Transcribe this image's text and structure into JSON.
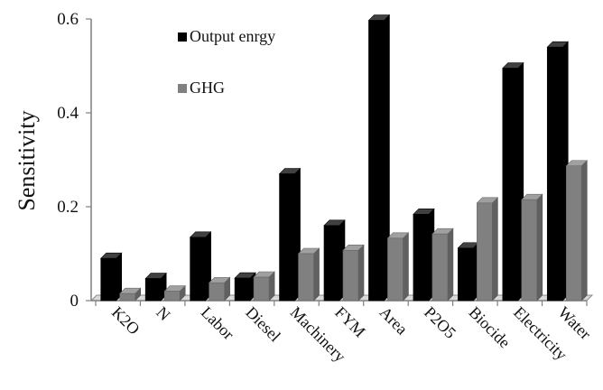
{
  "chart_data": {
    "type": "bar",
    "style": "3d-clustered",
    "title": "",
    "xlabel": "",
    "ylabel": "Sensitivity",
    "ylim": [
      0,
      0.6
    ],
    "yticks": [
      "0",
      "0.2",
      "0.4",
      "0.6"
    ],
    "ytick_values": [
      0,
      0.2,
      0.4,
      0.6
    ],
    "grid": false,
    "legend_position": "top-left",
    "categories": [
      "K2O",
      "N",
      "Labor",
      "Diesel",
      "Machinery",
      "FYM",
      "Area",
      "P2O5",
      "Biocide",
      "Electricity",
      "Water"
    ],
    "series": [
      {
        "name": "Output enrgy",
        "color": "#000000",
        "values": [
          0.09,
          0.047,
          0.135,
          0.048,
          0.27,
          0.16,
          0.597,
          0.184,
          0.112,
          0.495,
          0.54
        ]
      },
      {
        "name": "GHG",
        "color": "#808080",
        "values": [
          0.015,
          0.02,
          0.038,
          0.05,
          0.1,
          0.107,
          0.133,
          0.142,
          0.208,
          0.215,
          0.287
        ]
      }
    ]
  }
}
